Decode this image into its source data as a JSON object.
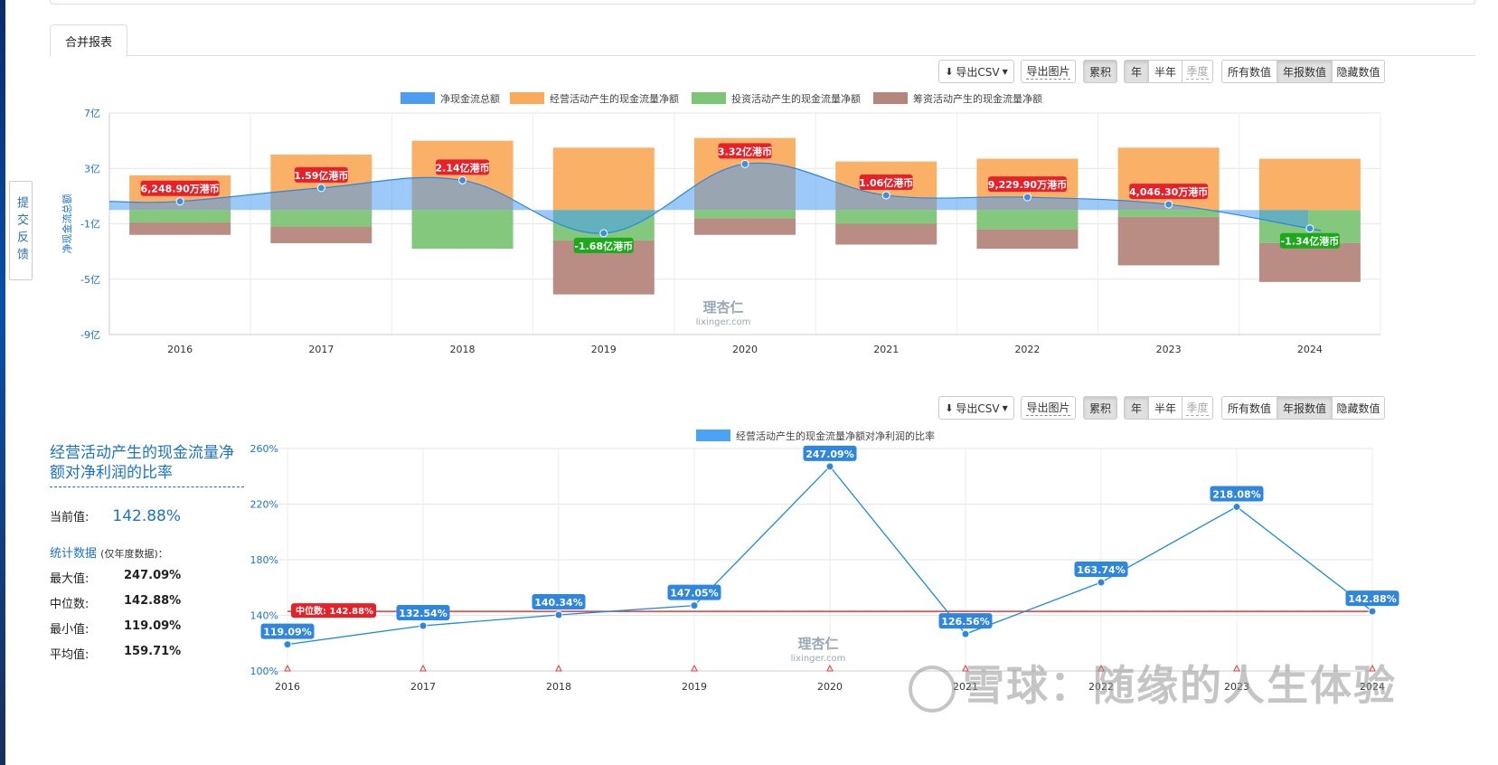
{
  "feedback": "提交反馈",
  "tab": "合并报表",
  "toolbar": {
    "export_csv": "导出CSV",
    "export_img": "导出图片",
    "cumulative": "累积",
    "year": "年",
    "half_year": "半年",
    "quarter": "季度",
    "all_values": "所有数值",
    "annual_values": "年报数值",
    "hide_values": "隐藏数值"
  },
  "chart1_axis": {
    "yticks": [
      "7亿",
      "3亿",
      "-1亿",
      "-5亿",
      "-9亿"
    ],
    "ylabel": "净现金流总额"
  },
  "chart2_axis": {
    "yticks": [
      "260%",
      "220%",
      "180%",
      "140%",
      "100%"
    ]
  },
  "watermark": {
    "logo_text": "理杏仁",
    "logo_url": "lixinger.com",
    "overlay": "雪球：随缘的人生体验"
  },
  "stats": {
    "title": "经营活动产生的现金流量净额对净利润的比率",
    "current_label": "当前值:",
    "current_value": "142.88%",
    "stat_title": "统计数据",
    "stat_note": "(仅年度数据)：",
    "rows": [
      {
        "k": "最大值:",
        "v": "247.09%"
      },
      {
        "k": "中位数:",
        "v": "142.88%"
      },
      {
        "k": "最小值:",
        "v": "119.09%"
      },
      {
        "k": "平均值:",
        "v": "159.71%"
      }
    ]
  },
  "chart_data": [
    {
      "type": "bar",
      "categories": [
        "2016",
        "2017",
        "2018",
        "2019",
        "2020",
        "2021",
        "2022",
        "2023",
        "2024"
      ],
      "ylabel": "净现金流总额",
      "ylim": [
        -9,
        7
      ],
      "unit": "亿",
      "legend_position": "top",
      "grid": true,
      "series": [
        {
          "name": "经营活动产生的现金流量净额",
          "type": "bar",
          "color": "#fba95a",
          "values": [
            2.5,
            4.0,
            5.0,
            4.5,
            5.2,
            3.5,
            3.7,
            4.5,
            3.7
          ]
        },
        {
          "name": "投资活动产生的现金流量净额",
          "type": "bar",
          "color": "#7cc576",
          "values": [
            -0.9,
            -1.2,
            -2.8,
            -2.2,
            -0.6,
            -1.0,
            -1.4,
            -0.5,
            -2.4
          ]
        },
        {
          "name": "筹资活动产生的现金流量净额",
          "type": "bar",
          "color": "#b5877c",
          "values": [
            -0.9,
            -1.2,
            0,
            -3.9,
            -1.2,
            -1.5,
            -1.4,
            -3.5,
            -2.8
          ]
        },
        {
          "name": "净现金流总额",
          "type": "area",
          "color": "#4a9df0",
          "values": [
            0.62,
            1.59,
            2.14,
            -1.68,
            3.32,
            1.06,
            0.92,
            0.4,
            -1.34
          ]
        }
      ],
      "data_labels": [
        "6,248.90万港币",
        "1.59亿港币",
        "2.14亿港币",
        "-1.68亿港币",
        "3.32亿港币",
        "1.06亿港币",
        "9,229.90万港币",
        "4,046.30万港币",
        "-1.34亿港币"
      ]
    },
    {
      "type": "line",
      "categories": [
        "2016",
        "2017",
        "2018",
        "2019",
        "2020",
        "2021",
        "2022",
        "2023",
        "2024"
      ],
      "ylim": [
        100,
        260
      ],
      "legend_position": "top",
      "grid": true,
      "series": [
        {
          "name": "经营活动产生的现金流量净额对净利润的比率",
          "color": "#1e88e5",
          "values": [
            119.09,
            132.54,
            140.34,
            147.05,
            247.09,
            126.56,
            163.74,
            218.08,
            142.88
          ]
        }
      ],
      "data_labels": [
        "119.09%",
        "132.54%",
        "140.34%",
        "147.05%",
        "247.09%",
        "126.56%",
        "163.74%",
        "218.08%",
        "142.88%"
      ],
      "median": {
        "label": "中位数: 142.88%",
        "value": 142.88,
        "color": "#e53935"
      }
    }
  ]
}
